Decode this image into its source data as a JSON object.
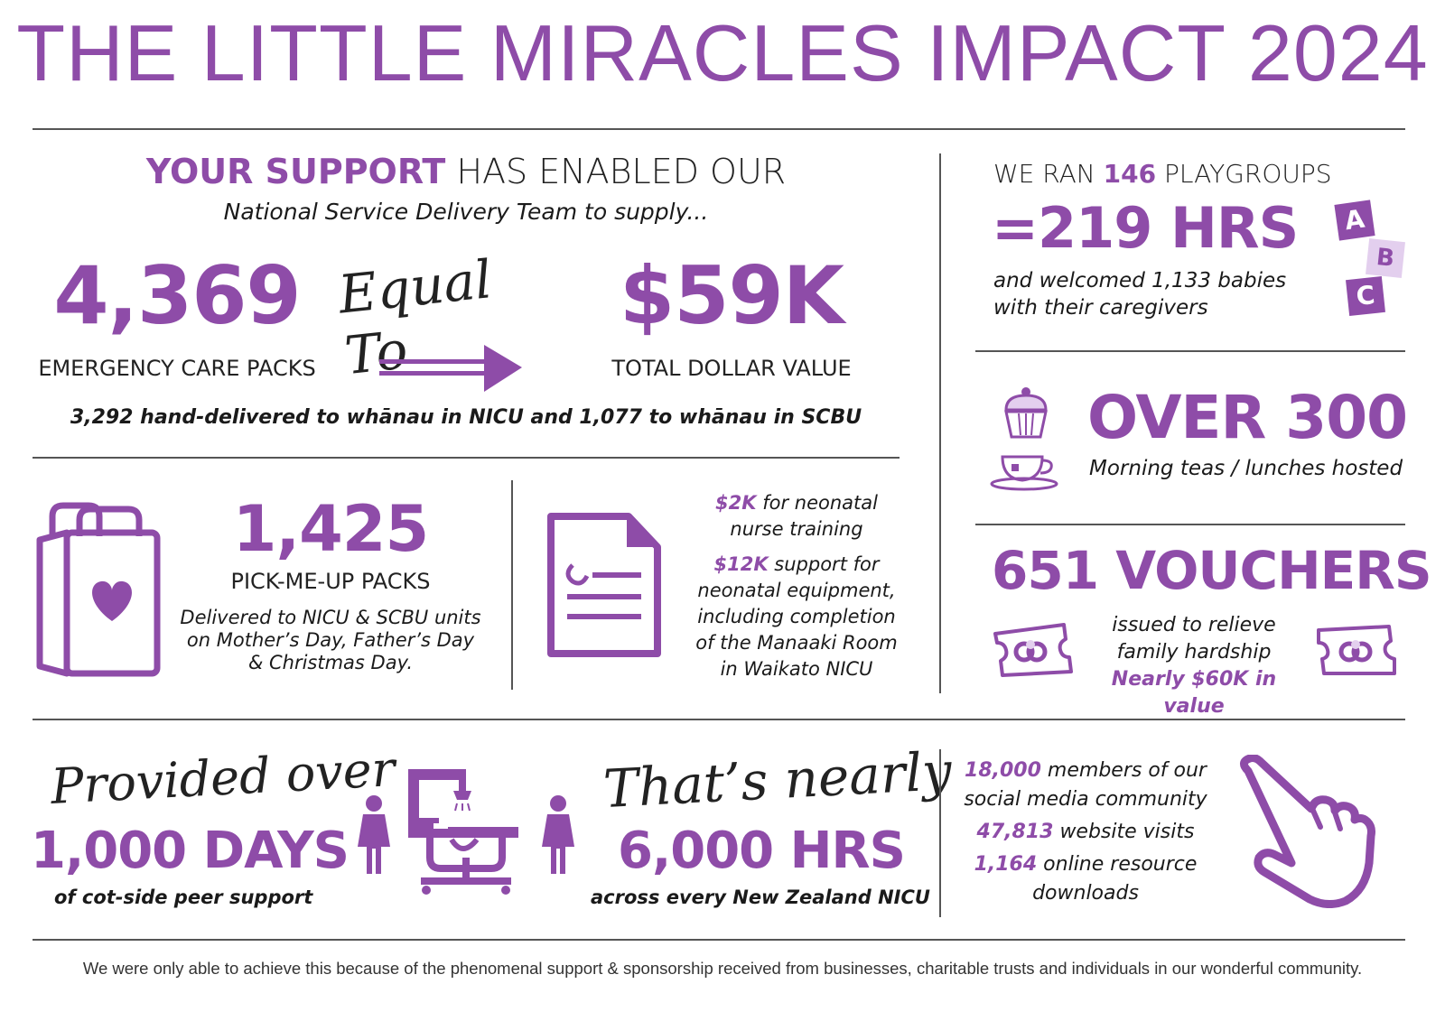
{
  "title": "THE LITTLE MIRACLES IMPACT 2024",
  "support": {
    "heading_strong": "YOUR SUPPORT",
    "heading_rest": "HAS ENABLED OUR",
    "subheading": "National Service Delivery Team to supply...",
    "packs_value": "4,369",
    "packs_label": "EMERGENCY CARE PACKS",
    "equal_to": "Equal To",
    "dollar_value": "$59K",
    "dollar_label": "TOTAL DOLLAR VALUE",
    "delivery_note": "3,292 hand-delivered to whānau in NICU and 1,077 to whānau in SCBU"
  },
  "pickmeup": {
    "value": "1,425",
    "label": "PICK-ME-UP PACKS",
    "line1": "Delivered to NICU & SCBU units",
    "line2": "on Mother’s Day, Father’s Day",
    "line3": "& Christmas Day."
  },
  "funding": {
    "amount1": "$2K",
    "text1a": "for neonatal",
    "text1b": "nurse training",
    "amount2": "$12K",
    "text2a": "support for",
    "text2b": "neonatal equipment,",
    "text2c": "including completion",
    "text2d": "of the Manaaki Room",
    "text2e": "in Waikato NICU"
  },
  "playgroups": {
    "prefix": "WE RAN",
    "count": "146",
    "suffix": "PLAYGROUPS",
    "hours": "=219 HRS",
    "line1": "and welcomed 1,133 babies",
    "line2": "with their caregivers",
    "block_a": "A",
    "block_b": "B",
    "block_c": "C"
  },
  "teas": {
    "value": "OVER 300",
    "label": "Morning teas / lunches hosted"
  },
  "vouchers": {
    "value": "651 VOUCHERS",
    "line1": "issued to relieve",
    "line2": "family hardship",
    "line3": "Nearly $60K in value"
  },
  "peer": {
    "script": "Provided over",
    "value": "1,000 DAYS",
    "label": "of cot-side peer support",
    "script2": "That’s nearly",
    "hours": "6,000 HRS",
    "hours_label": "across every New Zealand NICU"
  },
  "social": {
    "members": "18,000",
    "members_a": "members of our",
    "members_b": "social media community",
    "visits": "47,813",
    "visits_label": "website visits",
    "downloads": "1,164",
    "downloads_a": "online resource",
    "downloads_b": "downloads"
  },
  "footer": "We were only able to achieve this because of the phenomenal support & sponsorship received from businesses, charitable trusts and individuals in our wonderful community.",
  "colors": {
    "accent": "#8e4ca8",
    "light_accent": "#e3cfee",
    "text": "#1a1a1a"
  },
  "icons": [
    "arrow-right-icon",
    "shopping-bag-heart-icon",
    "document-icon",
    "abc-blocks-icon",
    "cupcake-icon",
    "teacup-icon",
    "voucher-icon",
    "parent-icon",
    "incubator-icon",
    "pointing-hand-icon"
  ]
}
